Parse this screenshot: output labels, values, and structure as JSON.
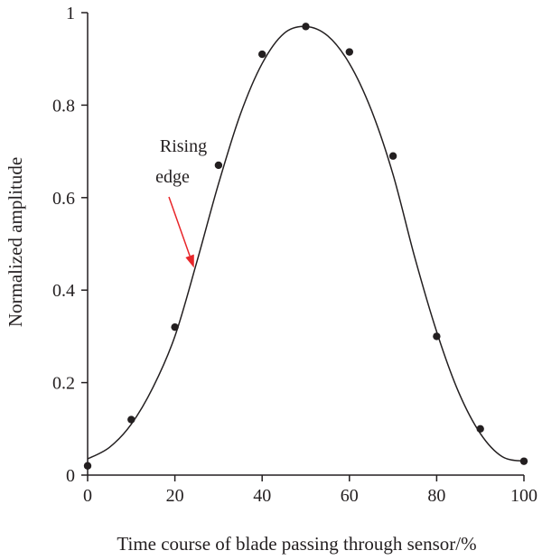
{
  "chart_data": {
    "type": "scatter",
    "title": "",
    "xlabel": "Time course of blade passing through sensor/%",
    "ylabel": "Normalized amplitude",
    "xlim": [
      0,
      100
    ],
    "ylim": [
      0,
      1
    ],
    "xticks": [
      0,
      20,
      40,
      60,
      80,
      100
    ],
    "xtick_labels": [
      "0",
      "20",
      "40",
      "60",
      "80",
      "100"
    ],
    "yticks": [
      0,
      0.2,
      0.4,
      0.6,
      0.8,
      1
    ],
    "ytick_labels": [
      "0",
      "0.2",
      "0.4",
      "0.6",
      "0.8",
      "1"
    ],
    "grid": false,
    "legend": "none",
    "series": [
      {
        "type": "scatter",
        "x": [
          0,
          10,
          20,
          30,
          40,
          50,
          60,
          70,
          80,
          90,
          100
        ],
        "y": [
          0.02,
          0.12,
          0.32,
          0.67,
          0.91,
          0.97,
          0.915,
          0.69,
          0.3,
          0.1,
          0.03
        ]
      },
      {
        "type": "line",
        "x": [
          0,
          5,
          10,
          15,
          20,
          25,
          30,
          35,
          40,
          45,
          50,
          55,
          60,
          65,
          70,
          75,
          80,
          85,
          90,
          95,
          100
        ],
        "y": [
          0.035,
          0.06,
          0.11,
          0.19,
          0.3,
          0.46,
          0.63,
          0.78,
          0.89,
          0.955,
          0.97,
          0.95,
          0.89,
          0.79,
          0.65,
          0.47,
          0.31,
          0.18,
          0.09,
          0.04,
          0.03
        ]
      }
    ],
    "annotations": [
      {
        "text_lines": [
          "Rising",
          "edge"
        ],
        "arrow_to": {
          "x": 25,
          "y": 0.46
        },
        "arrow_color": "#e8262a"
      }
    ],
    "colors": {
      "marks": "#231f20",
      "arrow": "#e8262a"
    }
  }
}
